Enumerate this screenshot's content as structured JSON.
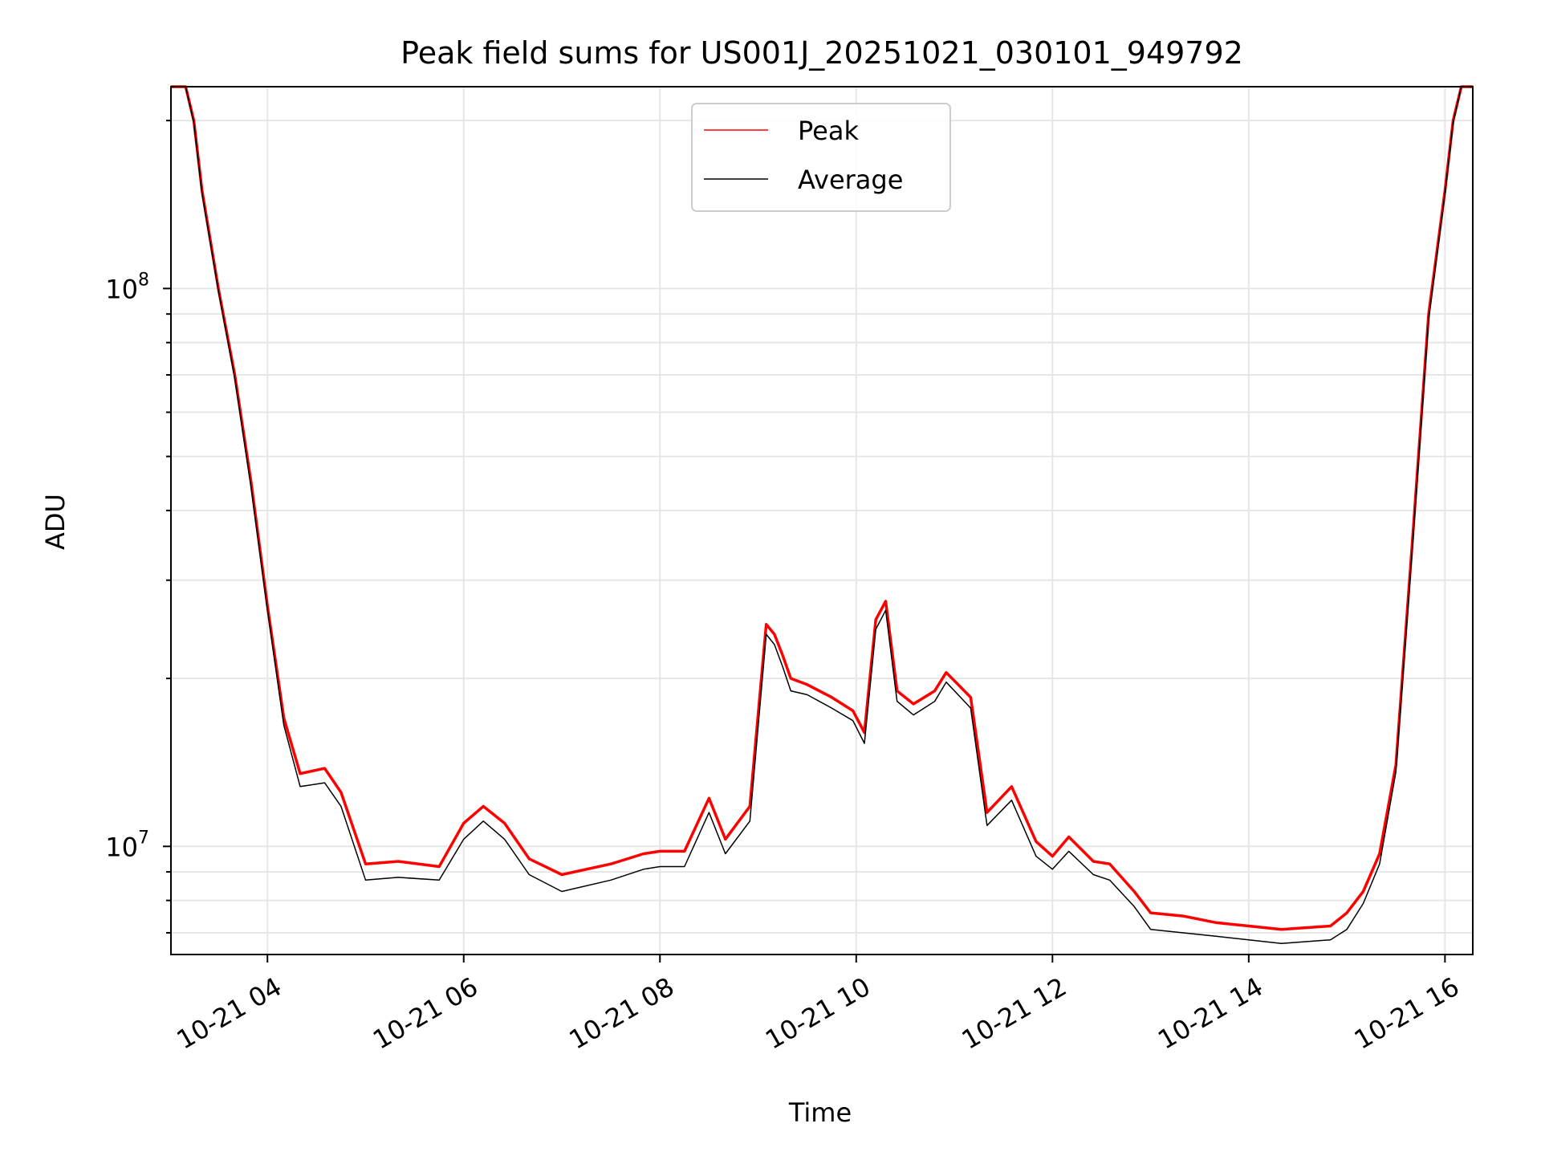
{
  "chart_data": {
    "type": "line",
    "title": "Peak field sums for US001J_20251021_030101_949792",
    "xlabel": "Time",
    "ylabel": "ADU",
    "y_scale": "log",
    "ylim": [
      6400000,
      230000000
    ],
    "xlim": [
      "2025-10-21 03:01",
      "2025-10-21 16:17"
    ],
    "x_ticks": [
      {
        "value": "2025-10-21 04:00",
        "label": "10-21 04"
      },
      {
        "value": "2025-10-21 06:00",
        "label": "10-21 06"
      },
      {
        "value": "2025-10-21 08:00",
        "label": "10-21 08"
      },
      {
        "value": "2025-10-21 10:00",
        "label": "10-21 10"
      },
      {
        "value": "2025-10-21 12:00",
        "label": "10-21 12"
      },
      {
        "value": "2025-10-21 14:00",
        "label": "10-21 14"
      },
      {
        "value": "2025-10-21 16:00",
        "label": "10-21 16"
      }
    ],
    "y_ticks": [
      {
        "value": 10000000,
        "label": "10",
        "exp": "7"
      },
      {
        "value": 100000000,
        "label": "10",
        "exp": "8"
      }
    ],
    "grid": true,
    "legend_position": "upper center",
    "series": [
      {
        "name": "Peak",
        "color": "#ff0000",
        "x": [
          "2025-10-21 03:01",
          "2025-10-21 03:10",
          "2025-10-21 03:15",
          "2025-10-21 03:20",
          "2025-10-21 03:30",
          "2025-10-21 03:40",
          "2025-10-21 03:50",
          "2025-10-21 04:00",
          "2025-10-21 04:10",
          "2025-10-21 04:20",
          "2025-10-21 04:35",
          "2025-10-21 04:45",
          "2025-10-21 05:00",
          "2025-10-21 05:20",
          "2025-10-21 05:45",
          "2025-10-21 06:00",
          "2025-10-21 06:12",
          "2025-10-21 06:25",
          "2025-10-21 06:40",
          "2025-10-21 07:00",
          "2025-10-21 07:30",
          "2025-10-21 07:50",
          "2025-10-21 08:00",
          "2025-10-21 08:15",
          "2025-10-21 08:30",
          "2025-10-21 08:40",
          "2025-10-21 08:55",
          "2025-10-21 09:05",
          "2025-10-21 09:10",
          "2025-10-21 09:15",
          "2025-10-21 09:20",
          "2025-10-21 09:30",
          "2025-10-21 09:45",
          "2025-10-21 09:58",
          "2025-10-21 10:05",
          "2025-10-21 10:12",
          "2025-10-21 10:18",
          "2025-10-21 10:25",
          "2025-10-21 10:35",
          "2025-10-21 10:48",
          "2025-10-21 10:55",
          "2025-10-21 11:10",
          "2025-10-21 11:20",
          "2025-10-21 11:35",
          "2025-10-21 11:50",
          "2025-10-21 12:00",
          "2025-10-21 12:10",
          "2025-10-21 12:25",
          "2025-10-21 12:35",
          "2025-10-21 12:50",
          "2025-10-21 13:00",
          "2025-10-21 13:20",
          "2025-10-21 13:40",
          "2025-10-21 14:00",
          "2025-10-21 14:20",
          "2025-10-21 14:50",
          "2025-10-21 15:00",
          "2025-10-21 15:10",
          "2025-10-21 15:20",
          "2025-10-21 15:30",
          "2025-10-21 15:40",
          "2025-10-21 15:50",
          "2025-10-21 16:00",
          "2025-10-21 16:05",
          "2025-10-21 16:10",
          "2025-10-21 16:17"
        ],
        "y": [
          230000000,
          230000000,
          200000000,
          150000000,
          100000000,
          70000000,
          45000000,
          27000000,
          17000000,
          13500000,
          13800000,
          12500000,
          9300000,
          9400000,
          9200000,
          11000000,
          11800000,
          11000000,
          9500000,
          8900000,
          9300000,
          9700000,
          9800000,
          9800000,
          12200000,
          10300000,
          11800000,
          25000000,
          24000000,
          22000000,
          20000000,
          19500000,
          18500000,
          17500000,
          16000000,
          25500000,
          27500000,
          19000000,
          18000000,
          19000000,
          20500000,
          18500000,
          11500000,
          12800000,
          10200000,
          9600000,
          10400000,
          9400000,
          9300000,
          8300000,
          7600000,
          7500000,
          7300000,
          7200000,
          7100000,
          7200000,
          7600000,
          8300000,
          9700000,
          14000000,
          35000000,
          90000000,
          150000000,
          200000000,
          230000000,
          230000000
        ]
      },
      {
        "name": "Average",
        "color": "#000000",
        "x": [
          "2025-10-21 03:01",
          "2025-10-21 03:10",
          "2025-10-21 03:15",
          "2025-10-21 03:20",
          "2025-10-21 03:30",
          "2025-10-21 03:40",
          "2025-10-21 03:50",
          "2025-10-21 04:00",
          "2025-10-21 04:10",
          "2025-10-21 04:20",
          "2025-10-21 04:35",
          "2025-10-21 04:45",
          "2025-10-21 05:00",
          "2025-10-21 05:20",
          "2025-10-21 05:45",
          "2025-10-21 06:00",
          "2025-10-21 06:12",
          "2025-10-21 06:25",
          "2025-10-21 06:40",
          "2025-10-21 07:00",
          "2025-10-21 07:30",
          "2025-10-21 07:50",
          "2025-10-21 08:00",
          "2025-10-21 08:15",
          "2025-10-21 08:30",
          "2025-10-21 08:40",
          "2025-10-21 08:55",
          "2025-10-21 09:05",
          "2025-10-21 09:10",
          "2025-10-21 09:15",
          "2025-10-21 09:20",
          "2025-10-21 09:30",
          "2025-10-21 09:45",
          "2025-10-21 09:58",
          "2025-10-21 10:05",
          "2025-10-21 10:12",
          "2025-10-21 10:18",
          "2025-10-21 10:25",
          "2025-10-21 10:35",
          "2025-10-21 10:48",
          "2025-10-21 10:55",
          "2025-10-21 11:10",
          "2025-10-21 11:20",
          "2025-10-21 11:35",
          "2025-10-21 11:50",
          "2025-10-21 12:00",
          "2025-10-21 12:10",
          "2025-10-21 12:25",
          "2025-10-21 12:35",
          "2025-10-21 12:50",
          "2025-10-21 13:00",
          "2025-10-21 13:20",
          "2025-10-21 13:40",
          "2025-10-21 14:00",
          "2025-10-21 14:20",
          "2025-10-21 14:50",
          "2025-10-21 15:00",
          "2025-10-21 15:10",
          "2025-10-21 15:20",
          "2025-10-21 15:30",
          "2025-10-21 15:40",
          "2025-10-21 15:50",
          "2025-10-21 16:00",
          "2025-10-21 16:05",
          "2025-10-21 16:10",
          "2025-10-21 16:17"
        ],
        "y": [
          230000000,
          230000000,
          198000000,
          148000000,
          99000000,
          69000000,
          44000000,
          26500000,
          16500000,
          12800000,
          13000000,
          11800000,
          8700000,
          8800000,
          8700000,
          10300000,
          11100000,
          10300000,
          8900000,
          8300000,
          8700000,
          9100000,
          9200000,
          9200000,
          11500000,
          9700000,
          11100000,
          24000000,
          23000000,
          21000000,
          19000000,
          18700000,
          17700000,
          16800000,
          15300000,
          24500000,
          26500000,
          18200000,
          17200000,
          18200000,
          19700000,
          17700000,
          10900000,
          12100000,
          9600000,
          9100000,
          9800000,
          8900000,
          8700000,
          7800000,
          7100000,
          7000000,
          6900000,
          6800000,
          6700000,
          6800000,
          7100000,
          7900000,
          9300000,
          13600000,
          34000000,
          88000000,
          148000000,
          198000000,
          230000000,
          230000000
        ]
      }
    ]
  }
}
